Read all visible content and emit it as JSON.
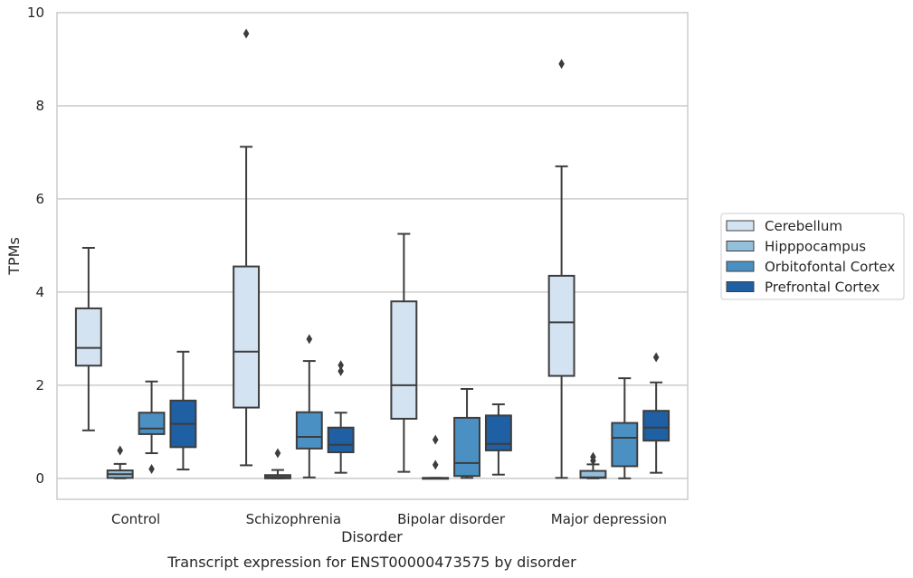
{
  "chart_data": {
    "type": "box",
    "caption": "Transcript expression for ENST00000473575 by disorder",
    "xlabel": "Disorder",
    "ylabel": "TPMs",
    "ylim": [
      -0.45,
      10
    ],
    "yticks": [
      0,
      2,
      4,
      6,
      8,
      10
    ],
    "grid": true,
    "legend_position": "right",
    "categories": [
      "Control",
      "Schizophrenia",
      "Bipolar disorder",
      "Major depression"
    ],
    "series": [
      {
        "name": "Cerebellum",
        "color": "#d4e3f2",
        "boxes": [
          {
            "whisker_low": 1.03,
            "q1": 2.42,
            "median": 2.8,
            "q3": 3.65,
            "whisker_high": 4.95,
            "outliers": []
          },
          {
            "whisker_low": 0.28,
            "q1": 1.52,
            "median": 2.72,
            "q3": 4.55,
            "whisker_high": 7.12,
            "outliers": [
              9.55
            ]
          },
          {
            "whisker_low": 0.14,
            "q1": 1.28,
            "median": 2.0,
            "q3": 3.8,
            "whisker_high": 5.25,
            "outliers": []
          },
          {
            "whisker_low": 0.01,
            "q1": 2.2,
            "median": 3.35,
            "q3": 4.35,
            "whisker_high": 6.7,
            "outliers": [
              8.9
            ]
          }
        ]
      },
      {
        "name": "Hipppocampus",
        "color": "#94bfda",
        "boxes": [
          {
            "whisker_low": 0.0,
            "q1": 0.01,
            "median": 0.09,
            "q3": 0.17,
            "whisker_high": 0.31,
            "outliers": [
              0.6
            ]
          },
          {
            "whisker_low": 0.0,
            "q1": 0.0,
            "median": 0.03,
            "q3": 0.07,
            "whisker_high": 0.18,
            "outliers": [
              0.54
            ]
          },
          {
            "whisker_low": 0.0,
            "q1": 0.0,
            "median": 0.0,
            "q3": 0.01,
            "whisker_high": 0.01,
            "outliers": [
              0.83,
              0.29
            ]
          },
          {
            "whisker_low": 0.0,
            "q1": 0.01,
            "median": 0.02,
            "q3": 0.16,
            "whisker_high": 0.3,
            "outliers": [
              0.46,
              0.38
            ]
          }
        ]
      },
      {
        "name": "Orbitofontal Cortex",
        "color": "#4a90c2",
        "boxes": [
          {
            "whisker_low": 0.54,
            "q1": 0.95,
            "median": 1.07,
            "q3": 1.41,
            "whisker_high": 2.08,
            "outliers": [
              0.2
            ]
          },
          {
            "whisker_low": 0.02,
            "q1": 0.64,
            "median": 0.89,
            "q3": 1.42,
            "whisker_high": 2.52,
            "outliers": [
              2.99
            ]
          },
          {
            "whisker_low": 0.01,
            "q1": 0.05,
            "median": 0.33,
            "q3": 1.3,
            "whisker_high": 1.92,
            "outliers": []
          },
          {
            "whisker_low": 0.0,
            "q1": 0.26,
            "median": 0.87,
            "q3": 1.19,
            "whisker_high": 2.15,
            "outliers": []
          }
        ]
      },
      {
        "name": "Prefrontal Cortex",
        "color": "#1f5fa3",
        "boxes": [
          {
            "whisker_low": 0.19,
            "q1": 0.67,
            "median": 1.17,
            "q3": 1.67,
            "whisker_high": 2.72,
            "outliers": []
          },
          {
            "whisker_low": 0.12,
            "q1": 0.56,
            "median": 0.72,
            "q3": 1.09,
            "whisker_high": 1.41,
            "outliers": [
              2.43,
              2.3
            ]
          },
          {
            "whisker_low": 0.08,
            "q1": 0.6,
            "median": 0.74,
            "q3": 1.35,
            "whisker_high": 1.59,
            "outliers": []
          },
          {
            "whisker_low": 0.12,
            "q1": 0.81,
            "median": 1.09,
            "q3": 1.45,
            "whisker_high": 2.06,
            "outliers": [
              2.6
            ]
          }
        ]
      }
    ]
  }
}
